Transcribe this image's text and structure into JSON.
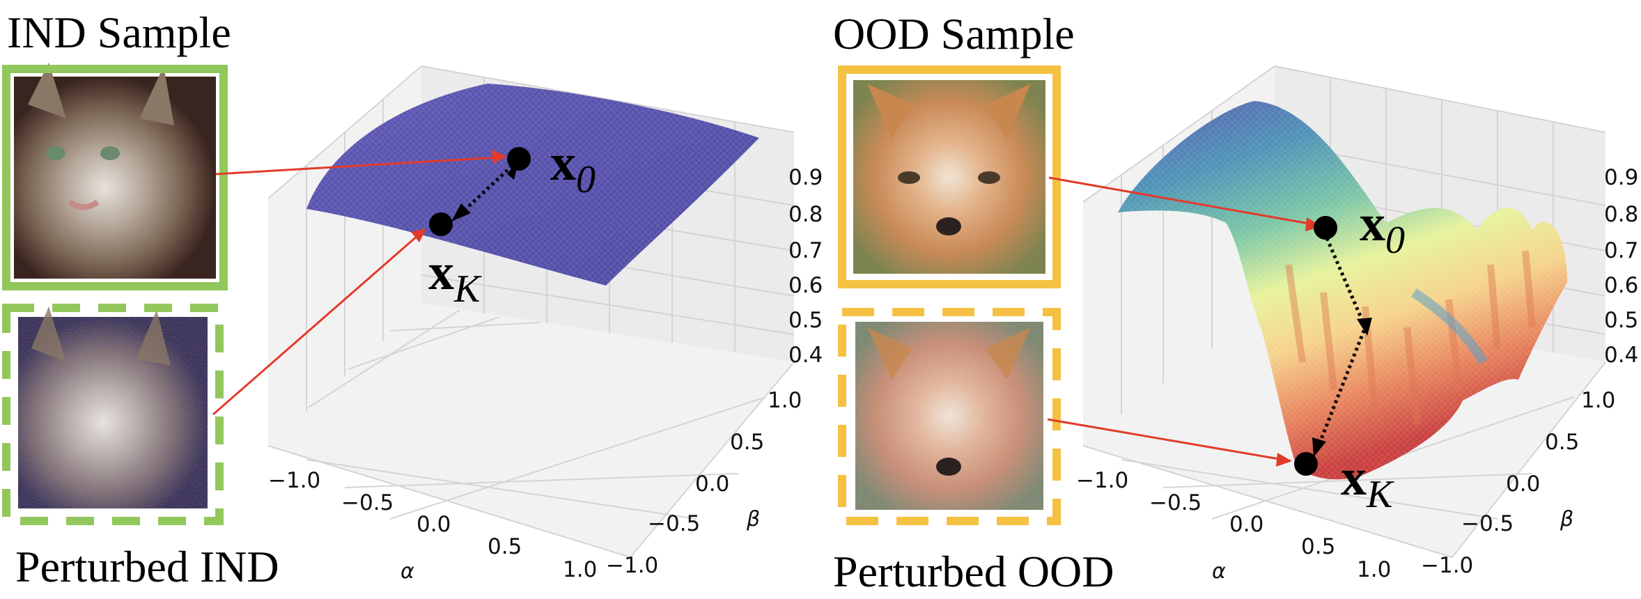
{
  "left_panel": {
    "sample_title": "IND Sample",
    "perturbed_title": "Perturbed IND",
    "sample_frame_color": "#92c75b",
    "sample_image": "cat-image",
    "perturbed_image": "noisy-cat-image",
    "start_point_symbol": "x",
    "start_point_subscript": "0",
    "end_point_symbol": "x",
    "end_point_subscript": "K",
    "surface_color": "#5b58b0",
    "z_ticks": [
      "0.9",
      "0.8",
      "0.7",
      "0.6",
      "0.5",
      "0.4"
    ],
    "alpha_ticks": [
      "−1.0",
      "−0.5",
      "0.0",
      "0.5",
      "1.0"
    ],
    "beta_ticks": [
      "−1.0",
      "−0.5",
      "0.0",
      "0.5",
      "1.0"
    ],
    "x_axis_label": "α",
    "y_axis_label": "β"
  },
  "right_panel": {
    "sample_title": "OOD Sample",
    "perturbed_title": "Perturbed OOD",
    "sample_frame_color": "#f5c142",
    "sample_image": "fox-image",
    "perturbed_image": "noisy-fox-image",
    "start_point_symbol": "x",
    "start_point_subscript": "0",
    "end_point_symbol": "x",
    "end_point_subscript": "K",
    "surface_colors": [
      "#5b58b0",
      "#4f93b8",
      "#7cc7a6",
      "#e7f39c",
      "#f6d28c",
      "#e9885f",
      "#c9403f"
    ],
    "z_ticks": [
      "0.9",
      "0.8",
      "0.7",
      "0.6",
      "0.5",
      "0.4"
    ],
    "alpha_ticks": [
      "−1.0",
      "−0.5",
      "0.0",
      "0.5",
      "1.0"
    ],
    "beta_ticks": [
      "−1.0",
      "−0.5",
      "0.0",
      "0.5",
      "1.0"
    ],
    "x_axis_label": "α",
    "y_axis_label": "β"
  },
  "arrow_color": "#e23b2a"
}
